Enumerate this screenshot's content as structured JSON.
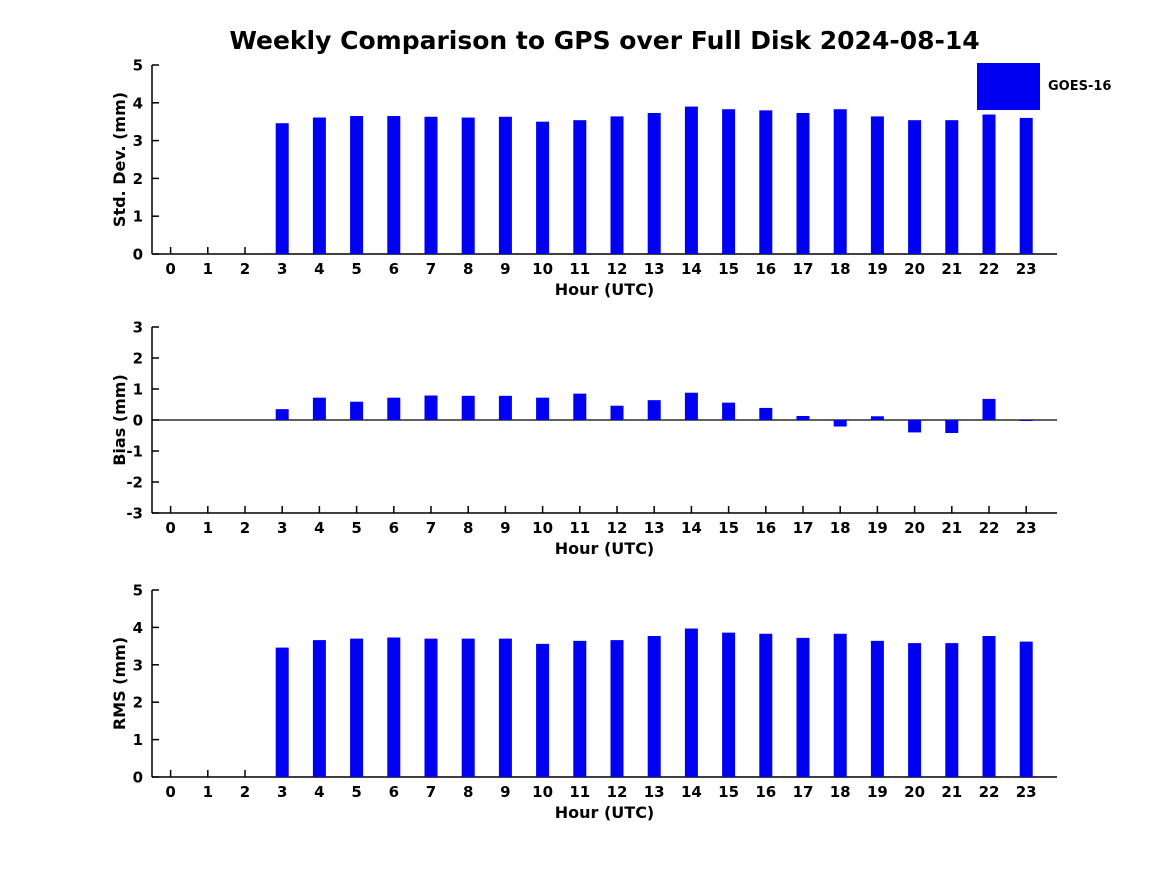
{
  "title": "Weekly Comparison to GPS over Full Disk 2024-08-14",
  "legend": {
    "label": "GOES-16",
    "position": "top-right"
  },
  "colors": {
    "bar": "#0000f2",
    "axis": "#000000",
    "text": "#000000",
    "background": "#ffffff"
  },
  "chart_data": [
    {
      "type": "bar",
      "name": "std-dev-panel",
      "series_name": "GOES-16",
      "xlabel": "Hour (UTC)",
      "ylabel": "Std. Dev. (mm)",
      "ylim": [
        0,
        5
      ],
      "yticks": [
        0,
        1,
        2,
        3,
        4,
        5
      ],
      "grid": false,
      "categories": [
        0,
        1,
        2,
        3,
        4,
        5,
        6,
        7,
        8,
        9,
        10,
        11,
        12,
        13,
        14,
        15,
        16,
        17,
        18,
        19,
        20,
        21,
        22,
        23
      ],
      "values": [
        null,
        null,
        null,
        3.46,
        3.61,
        3.65,
        3.65,
        3.63,
        3.61,
        3.63,
        3.5,
        3.54,
        3.64,
        3.73,
        3.9,
        3.83,
        3.8,
        3.73,
        3.83,
        3.64,
        3.54,
        3.54,
        3.69,
        3.6
      ]
    },
    {
      "type": "bar",
      "name": "bias-panel",
      "series_name": "GOES-16",
      "xlabel": "Hour (UTC)",
      "ylabel": "Bias (mm)",
      "ylim": [
        -3,
        3
      ],
      "yticks": [
        -3,
        -2,
        -1,
        0,
        1,
        2,
        3
      ],
      "grid": false,
      "categories": [
        0,
        1,
        2,
        3,
        4,
        5,
        6,
        7,
        8,
        9,
        10,
        11,
        12,
        13,
        14,
        15,
        16,
        17,
        18,
        19,
        20,
        21,
        22,
        23
      ],
      "values": [
        null,
        null,
        null,
        0.35,
        0.72,
        0.59,
        0.72,
        0.79,
        0.78,
        0.78,
        0.72,
        0.85,
        0.46,
        0.64,
        0.88,
        0.56,
        0.39,
        0.13,
        -0.21,
        0.12,
        -0.4,
        -0.42,
        0.68,
        -0.02
      ]
    },
    {
      "type": "bar",
      "name": "rms-panel",
      "series_name": "GOES-16",
      "xlabel": "Hour (UTC)",
      "ylabel": "RMS (mm)",
      "ylim": [
        0,
        5
      ],
      "yticks": [
        0,
        1,
        2,
        3,
        4,
        5
      ],
      "grid": false,
      "categories": [
        0,
        1,
        2,
        3,
        4,
        5,
        6,
        7,
        8,
        9,
        10,
        11,
        12,
        13,
        14,
        15,
        16,
        17,
        18,
        19,
        20,
        21,
        22,
        23
      ],
      "values": [
        null,
        null,
        null,
        3.46,
        3.66,
        3.7,
        3.73,
        3.7,
        3.7,
        3.7,
        3.56,
        3.64,
        3.66,
        3.77,
        3.97,
        3.86,
        3.83,
        3.72,
        3.83,
        3.64,
        3.58,
        3.58,
        3.77,
        3.62
      ]
    }
  ]
}
